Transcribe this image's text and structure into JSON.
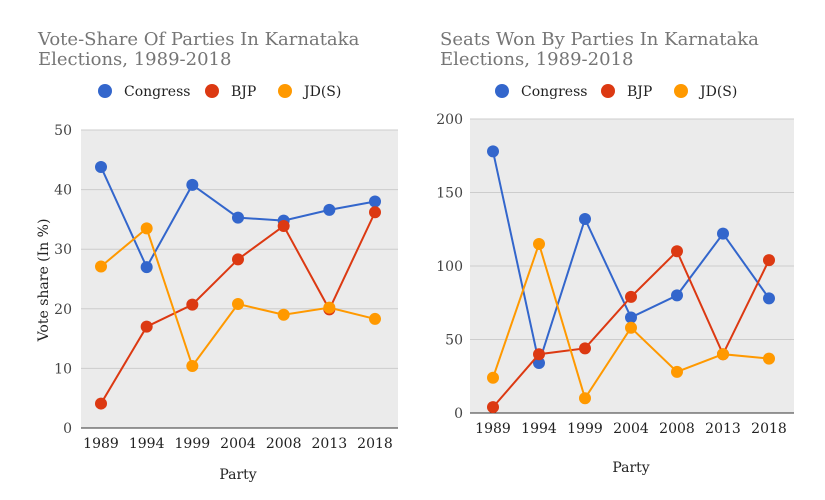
{
  "chart_data": [
    {
      "type": "line",
      "title": "Vote-Share Of Parties In Karnataka Elections, 1989-2018",
      "title_lines": [
        "Vote-Share Of Parties In Karnataka",
        "Elections, 1989-2018"
      ],
      "xlabel": "Party",
      "ylabel": "Vote share (In %)",
      "categories": [
        "1989",
        "1994",
        "1999",
        "2004",
        "2008",
        "2013",
        "2018"
      ],
      "ylim": [
        0,
        50
      ],
      "yticks": [
        0,
        10,
        20,
        30,
        40,
        50
      ],
      "grid": true,
      "legend_position": "top",
      "series": [
        {
          "name": "Congress",
          "color": "#3366cc",
          "values": [
            43.8,
            27.0,
            40.8,
            35.3,
            34.8,
            36.6,
            38.0
          ]
        },
        {
          "name": "BJP",
          "color": "#dc3912",
          "values": [
            4.1,
            17.0,
            20.7,
            28.3,
            33.9,
            19.9,
            36.2
          ]
        },
        {
          "name": "JD(S)",
          "color": "#ff9900",
          "values": [
            27.1,
            33.5,
            10.4,
            20.8,
            19.0,
            20.2,
            18.3
          ]
        }
      ]
    },
    {
      "type": "line",
      "title": "Seats Won By Parties In Karnataka Elections, 1989-2018",
      "title_lines": [
        "Seats Won By Parties In Karnataka",
        "Elections, 1989-2018"
      ],
      "xlabel": "Party",
      "ylabel": "",
      "categories": [
        "1989",
        "1994",
        "1999",
        "2004",
        "2008",
        "2013",
        "2018"
      ],
      "ylim": [
        0,
        200
      ],
      "yticks": [
        0,
        50,
        100,
        150,
        200
      ],
      "grid": true,
      "legend_position": "top",
      "series": [
        {
          "name": "Congress",
          "color": "#3366cc",
          "values": [
            178,
            34,
            132,
            65,
            80,
            122,
            78
          ]
        },
        {
          "name": "BJP",
          "color": "#dc3912",
          "values": [
            4,
            40,
            44,
            79,
            110,
            40,
            104
          ]
        },
        {
          "name": "JD(S)",
          "color": "#ff9900",
          "values": [
            24,
            115,
            10,
            58,
            28,
            40,
            37
          ]
        }
      ]
    }
  ]
}
